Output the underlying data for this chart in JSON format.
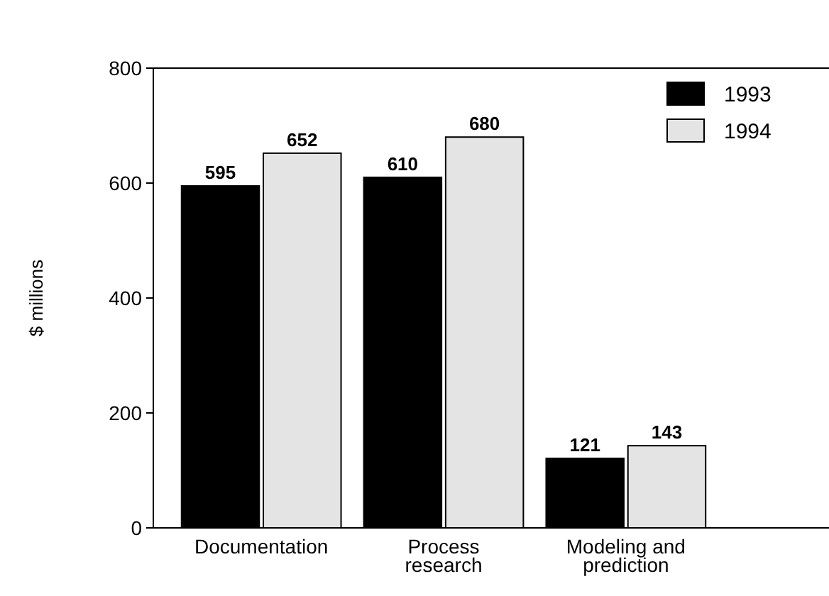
{
  "chart_data": {
    "type": "bar",
    "ylabel": "$ millions",
    "categories": [
      "Documentation",
      "Process\nresearch",
      "Modeling and\nprediction"
    ],
    "series": [
      {
        "name": "1993",
        "color": "#000000",
        "values": [
          595,
          610,
          121
        ]
      },
      {
        "name": "1994",
        "color": "#e4e4e4",
        "values": [
          652,
          680,
          143
        ]
      }
    ],
    "ylim": [
      0,
      800
    ],
    "yticks": [
      0,
      200,
      400,
      600,
      800
    ],
    "data_labels": true,
    "legend": "top right",
    "grid": false
  }
}
